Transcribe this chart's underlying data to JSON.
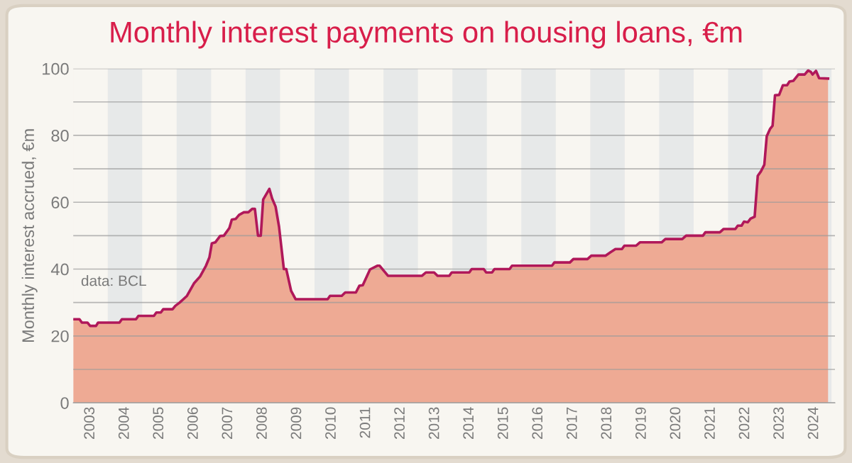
{
  "chart_data": {
    "type": "area",
    "title": "Monthly interest payments on housing loans, €m",
    "ylabel": "Monthly interest accrued, €m",
    "annotations": [
      "data: BCL"
    ],
    "series": [
      {
        "color": "#b0185a",
        "x": [
          2003.0,
          2003.18,
          2003.25,
          2003.41,
          2003.49,
          2003.66,
          2003.72,
          2004.34,
          2004.41,
          2004.82,
          2004.89,
          2005.34,
          2005.41,
          2005.54,
          2005.61,
          2005.88,
          2005.96,
          2006.09,
          2006.3,
          2006.5,
          2006.68,
          2006.85,
          2006.95,
          2007.02,
          2007.12,
          2007.26,
          2007.37,
          2007.53,
          2007.6,
          2007.71,
          2007.81,
          2007.95,
          2008.08,
          2008.19,
          2008.27,
          2008.36,
          2008.44,
          2008.51,
          2008.69,
          2008.77,
          2008.87,
          2008.97,
          2009.11,
          2009.18,
          2009.32,
          2009.45,
          2010.38,
          2010.45,
          2010.79,
          2010.89,
          2011.2,
          2011.3,
          2011.4,
          2011.61,
          2011.82,
          2011.89,
          2012.13,
          2013.12,
          2013.23,
          2013.47,
          2013.57,
          2013.91,
          2013.98,
          2014.49,
          2014.56,
          2014.91,
          2014.98,
          2015.15,
          2015.22,
          2015.66,
          2015.73,
          2016.89,
          2016.96,
          2017.41,
          2017.51,
          2017.92,
          2018.03,
          2018.44,
          2018.58,
          2018.73,
          2018.92,
          2018.99,
          2019.33,
          2019.44,
          2020.07,
          2020.18,
          2020.67,
          2020.78,
          2021.27,
          2021.34,
          2021.76,
          2021.87,
          2022.21,
          2022.28,
          2022.39,
          2022.46,
          2022.57,
          2022.65,
          2022.77,
          2022.86,
          2022.95,
          2023.05,
          2023.12,
          2023.22,
          2023.29,
          2023.36,
          2023.48,
          2023.59,
          2023.71,
          2023.78,
          2023.89,
          2024.04,
          2024.22,
          2024.32,
          2024.4,
          2024.45,
          2024.55,
          2024.64,
          2024.9
        ],
        "values": [
          25,
          25,
          24,
          24,
          23,
          23,
          24,
          24,
          25,
          25,
          26,
          26,
          27,
          27,
          28,
          28,
          29,
          30,
          32,
          35.7,
          37.8,
          41,
          43.5,
          47.7,
          48,
          49.9,
          50,
          52.3,
          54.8,
          55,
          56.2,
          57,
          57,
          58,
          58,
          50,
          50,
          60.8,
          64,
          61.1,
          58.7,
          52.7,
          40,
          40,
          33.5,
          31,
          31,
          32,
          32,
          33,
          33,
          35,
          35.2,
          39.9,
          41,
          41,
          38,
          38,
          39,
          39,
          38,
          38,
          39,
          39,
          40,
          40,
          39,
          39,
          40,
          40,
          41,
          41,
          42,
          42,
          43,
          43,
          44,
          44,
          45,
          46,
          46,
          47,
          47,
          48,
          48,
          49,
          49,
          50,
          50,
          51,
          51,
          52,
          52,
          53,
          53,
          54.2,
          54,
          55.1,
          55.7,
          67.9,
          69.2,
          71.2,
          79.7,
          82,
          82.9,
          92,
          92.1,
          95,
          95,
          96.1,
          96.3,
          98.2,
          98.2,
          99.4,
          99,
          98.2,
          99.3,
          97.1,
          97
        ]
      }
    ],
    "xlim": [
      2003,
      2025.1
    ],
    "ylim": [
      0,
      100
    ],
    "xticks": [
      {
        "value": 2003.5,
        "label": "2003"
      },
      {
        "value": 2004.5,
        "label": "2004"
      },
      {
        "value": 2005.5,
        "label": "2005"
      },
      {
        "value": 2006.5,
        "label": "2006"
      },
      {
        "value": 2007.5,
        "label": "2007"
      },
      {
        "value": 2008.5,
        "label": "2008"
      },
      {
        "value": 2009.5,
        "label": "2009"
      },
      {
        "value": 2010.5,
        "label": "2010"
      },
      {
        "value": 2011.5,
        "label": "2011"
      },
      {
        "value": 2012.5,
        "label": "2012"
      },
      {
        "value": 2013.5,
        "label": "2013"
      },
      {
        "value": 2014.5,
        "label": "2014"
      },
      {
        "value": 2015.5,
        "label": "2015"
      },
      {
        "value": 2016.5,
        "label": "2016"
      },
      {
        "value": 2017.5,
        "label": "2017"
      },
      {
        "value": 2018.5,
        "label": "2018"
      },
      {
        "value": 2019.5,
        "label": "2019"
      },
      {
        "value": 2020.5,
        "label": "2020"
      },
      {
        "value": 2021.5,
        "label": "2021"
      },
      {
        "value": 2022.5,
        "label": "2022"
      },
      {
        "value": 2023.5,
        "label": "2023"
      },
      {
        "value": 2024.5,
        "label": "2024"
      }
    ],
    "yticks": [
      0,
      {
        "value": 10,
        "label": null
      },
      20,
      {
        "value": 30,
        "label": null
      },
      40,
      {
        "value": 50,
        "label": null
      },
      60,
      {
        "value": 70,
        "label": null
      },
      80,
      {
        "value": 90,
        "label": null
      },
      100
    ],
    "grid": "y",
    "line_style": "solid",
    "marker": "none",
    "bands": [
      {
        "axis": "x",
        "from": 2004,
        "to": 2005,
        "color": "#e7e9e9"
      },
      {
        "axis": "x",
        "from": 2006,
        "to": 2007,
        "color": "#e7e9e9"
      },
      {
        "axis": "x",
        "from": 2008,
        "to": 2009,
        "color": "#e7e9e9"
      },
      {
        "axis": "x",
        "from": 2010,
        "to": 2011,
        "color": "#e7e9e9"
      },
      {
        "axis": "x",
        "from": 2012,
        "to": 2013,
        "color": "#e7e9e9"
      },
      {
        "axis": "x",
        "from": 2014,
        "to": 2015,
        "color": "#e7e9e9"
      },
      {
        "axis": "x",
        "from": 2016,
        "to": 2017,
        "color": "#e7e9e9"
      },
      {
        "axis": "x",
        "from": 2018,
        "to": 2019,
        "color": "#e7e9e9"
      },
      {
        "axis": "x",
        "from": 2020,
        "to": 2021,
        "color": "#e7e9e9"
      },
      {
        "axis": "x",
        "from": 2022,
        "to": 2023,
        "color": "#e7e9e9"
      },
      {
        "axis": "x",
        "from": 2024,
        "to": 2025,
        "color": "#e7e9e9"
      }
    ]
  }
}
